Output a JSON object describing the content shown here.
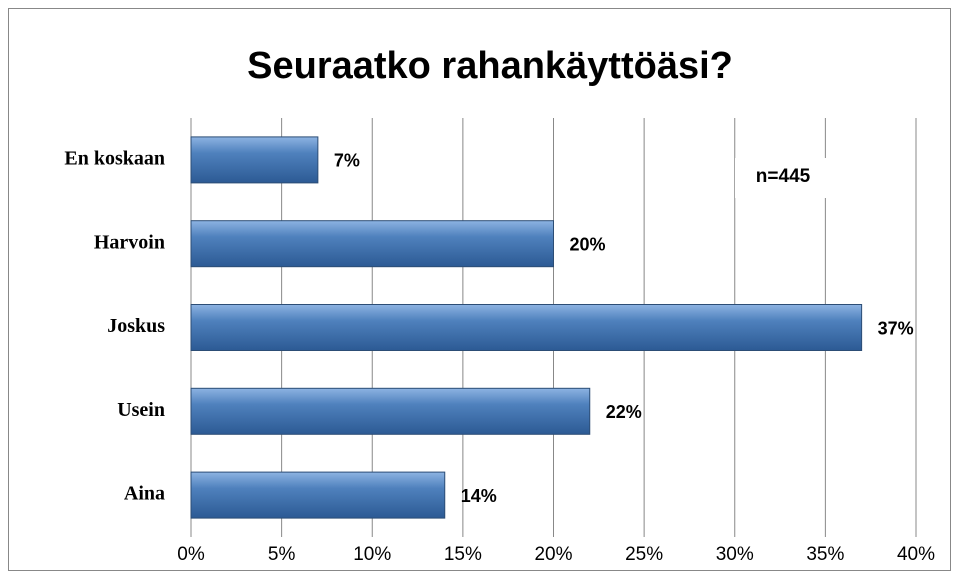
{
  "chart_data": {
    "type": "bar",
    "orientation": "horizontal",
    "title": "Seuraatko rahankäyttöäsi?",
    "annotation": "n=445",
    "categories": [
      "En koskaan",
      "Harvoin",
      "Joskus",
      "Usein",
      "Aina"
    ],
    "values": [
      7,
      20,
      37,
      22,
      14
    ],
    "value_labels": [
      "7%",
      "20%",
      "37%",
      "22%",
      "14%"
    ],
    "color": "#4f81bd",
    "xlim": [
      0,
      40
    ],
    "xticks": [
      {
        "value": 0,
        "label": "0%"
      },
      {
        "value": 5,
        "label": "5%"
      },
      {
        "value": 10,
        "label": "10%"
      },
      {
        "value": 15,
        "label": "15%"
      },
      {
        "value": 20,
        "label": "20%"
      },
      {
        "value": 25,
        "label": "25%"
      },
      {
        "value": 30,
        "label": "30%"
      },
      {
        "value": 35,
        "label": "35%"
      },
      {
        "value": 40,
        "label": "40%"
      }
    ],
    "grid": true
  }
}
